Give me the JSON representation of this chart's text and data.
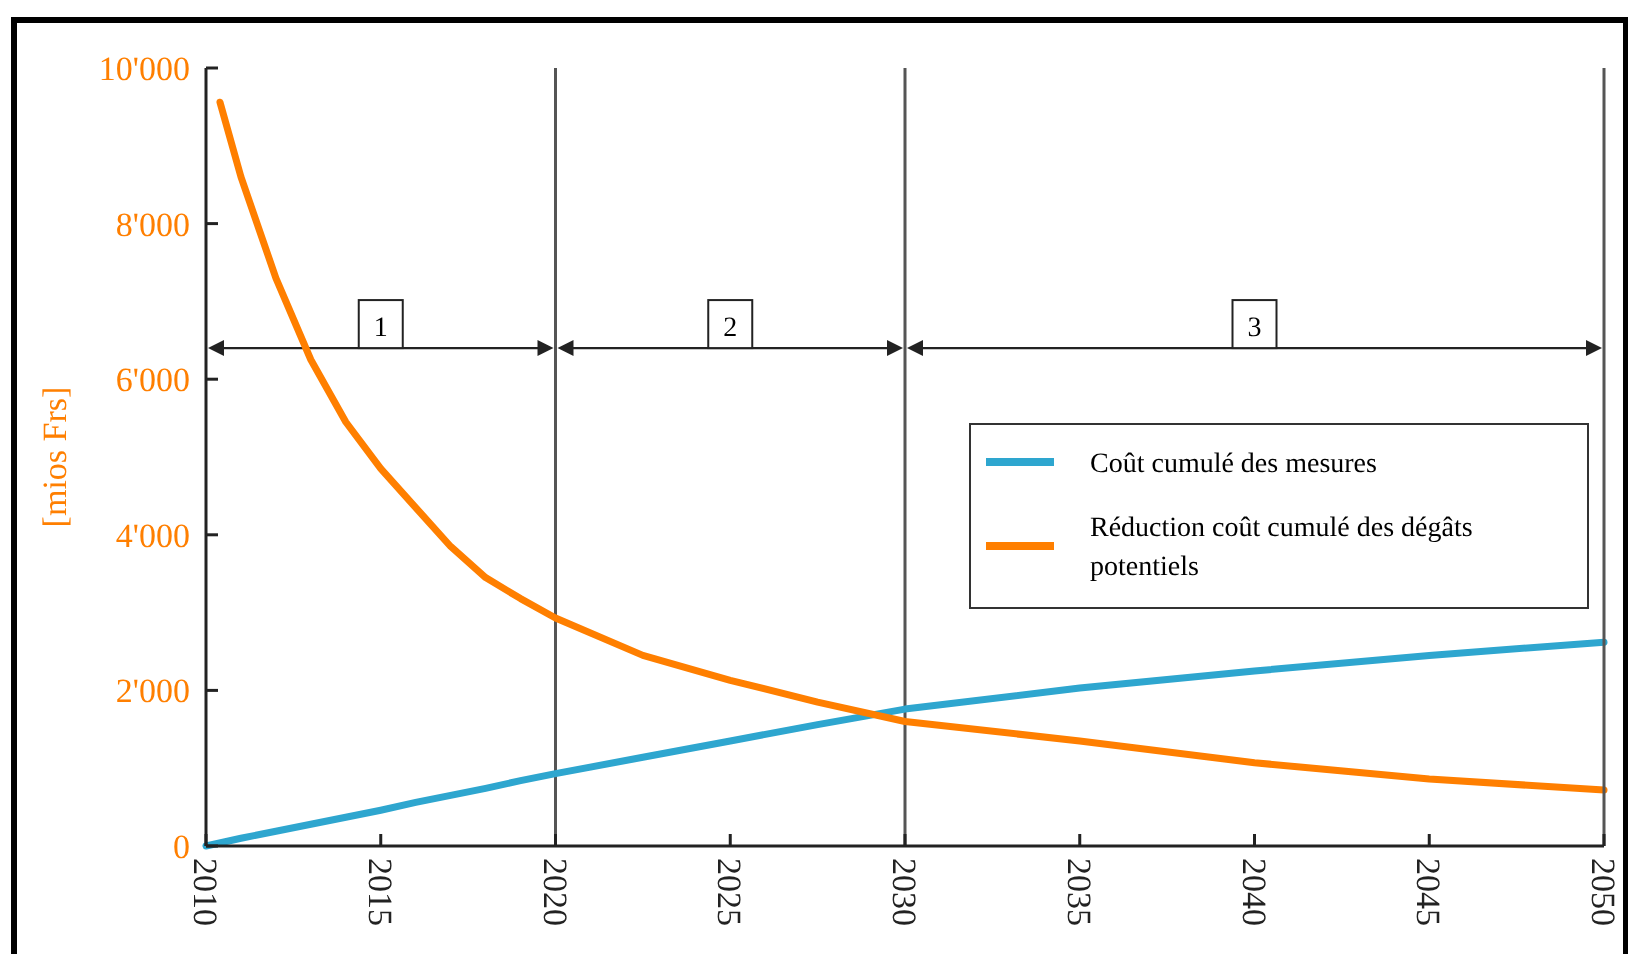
{
  "chart_data": {
    "type": "line",
    "ylabel": "[mios Frs]",
    "x": [
      2010,
      2011,
      2012,
      2013,
      2014,
      2015,
      2016,
      2017,
      2018,
      2019,
      2020,
      2022.5,
      2025,
      2027.5,
      2030,
      2035,
      2040,
      2045,
      2050
    ],
    "series": [
      {
        "name": "Coût cumulé des mesures",
        "color": "#2ea6cf",
        "values": [
          0,
          100,
          190,
          280,
          370,
          460,
          560,
          650,
          740,
          840,
          930,
          1140,
          1350,
          1560,
          1760,
          2030,
          2250,
          2450,
          2620
        ]
      },
      {
        "name": "Réduction coût cumulé des dégâts potentiels",
        "color": "#ff7f00",
        "x": [
          2010.4,
          2011,
          2012,
          2013,
          2014,
          2015,
          2016,
          2017,
          2018,
          2019,
          2020,
          2022.5,
          2025,
          2027.5,
          2030,
          2035,
          2040,
          2045,
          2050
        ],
        "values": [
          9560,
          8600,
          7300,
          6250,
          5450,
          4850,
          4350,
          3850,
          3450,
          3180,
          2930,
          2450,
          2130,
          1850,
          1600,
          1350,
          1070,
          860,
          720
        ]
      }
    ],
    "xlim": [
      2010,
      2050
    ],
    "xticks": [
      2010,
      2015,
      2020,
      2025,
      2030,
      2035,
      2040,
      2045,
      2050
    ],
    "ylim": [
      0,
      10000
    ],
    "yticks": [
      0,
      {
        "value": 2000,
        "label": "2'000"
      },
      {
        "value": 4000,
        "label": "4'000"
      },
      {
        "value": 6000,
        "label": "6'000"
      },
      {
        "value": 8000,
        "label": "8'000"
      },
      {
        "value": 10000,
        "label": "10'000"
      }
    ],
    "ref_lines": [
      {
        "axis": "x",
        "value": 2020,
        "color": "#555555"
      },
      {
        "axis": "x",
        "value": 2030,
        "color": "#555555"
      }
    ],
    "annotations": [
      "1",
      "2",
      "3"
    ],
    "legend": "right",
    "grid": false,
    "marker": "none",
    "line_style": "solid"
  }
}
